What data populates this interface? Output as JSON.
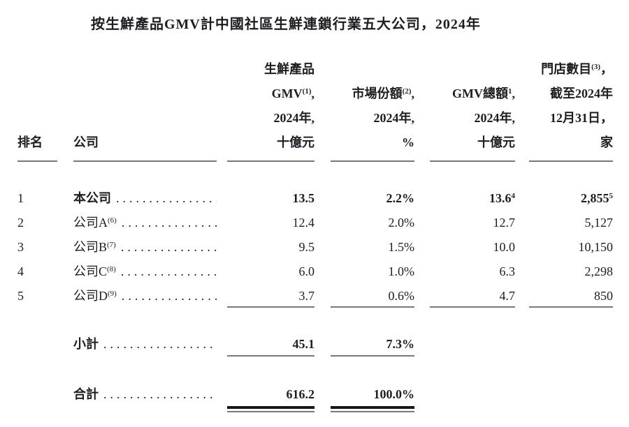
{
  "title": "按生鮮產品GMV計中國社區生鮮連鎖行業五大公司，2024年",
  "colors": {
    "text": "#1d1e22",
    "rule_gray": "#77787b",
    "rule_black": "#16171a",
    "background": "#ffffff"
  },
  "columns": {
    "rank": "排名",
    "company": "公司",
    "fresh_gmv": {
      "l1": "生鮮產品",
      "l2_text": "GMV",
      "l2_sup": "(1)",
      "l2_tail": ",",
      "l3": "2024年,",
      "l4": "十億元"
    },
    "market_share": {
      "l1_text": "市場份額",
      "l1_sup": "(2)",
      "l1_tail": ",",
      "l2": "2024年,",
      "l3": "%"
    },
    "total_gmv": {
      "l1_text": "GMV總額",
      "l1_sup": "1",
      "l1_tail": ",",
      "l2": "2024年,",
      "l3": "十億元"
    },
    "stores": {
      "l1_text": "門店數目",
      "l1_sup": "(3)",
      "l1_tail": "，",
      "l2": "截至2024年",
      "l3": "12月31日，",
      "l4": "家"
    }
  },
  "rows": [
    {
      "rank": "1",
      "name": "本公司",
      "name_sup": "",
      "gmv": "13.5",
      "share": "2.2%",
      "total": "13.6",
      "total_sup": "4",
      "stores": "2,855",
      "stores_sup": "5"
    },
    {
      "rank": "2",
      "name": "公司A",
      "name_sup": "(6)",
      "gmv": "12.4",
      "share": "2.0%",
      "total": "12.7",
      "total_sup": "",
      "stores": "5,127",
      "stores_sup": ""
    },
    {
      "rank": "3",
      "name": "公司B",
      "name_sup": "(7)",
      "gmv": "9.5",
      "share": "1.5%",
      "total": "10.0",
      "total_sup": "",
      "stores": "10,150",
      "stores_sup": ""
    },
    {
      "rank": "4",
      "name": "公司C",
      "name_sup": "(8)",
      "gmv": "6.0",
      "share": "1.0%",
      "total": "6.3",
      "total_sup": "",
      "stores": "2,298",
      "stores_sup": ""
    },
    {
      "rank": "5",
      "name": "公司D",
      "name_sup": "(9)",
      "gmv": "3.7",
      "share": "0.6%",
      "total": "4.7",
      "total_sup": "",
      "stores": "850",
      "stores_sup": ""
    }
  ],
  "subtotal": {
    "label": "小計",
    "gmv": "45.1",
    "share": "7.3%"
  },
  "grand_total": {
    "label": "合計",
    "gmv": "616.2",
    "share": "100.0%"
  },
  "leader_dots": "........................................"
}
